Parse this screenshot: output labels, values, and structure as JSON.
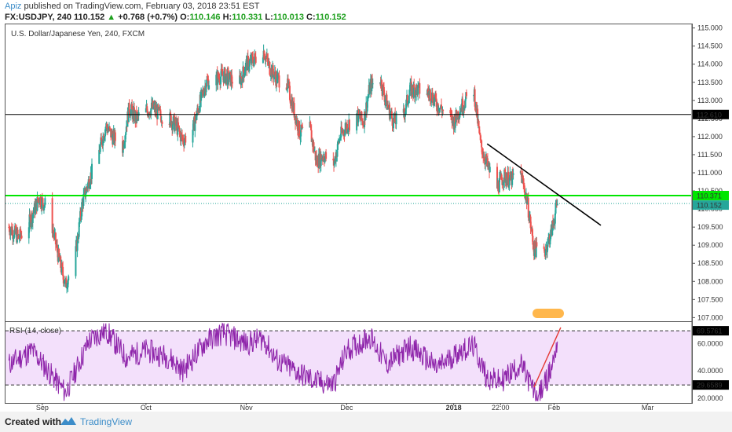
{
  "header": {
    "author": "Apiz",
    "published": "published on TradingView.com, February 03, 2018 23:51 EST",
    "symbol": "FX:USDJPY, 240",
    "last": "110.152",
    "change": "+0.768 (+0.7%)",
    "open_label": "O:",
    "open": "110.146",
    "high_label": "H:",
    "high": "110.331",
    "low_label": "L:",
    "low": "110.013",
    "close_label": "C:",
    "close": "110.152"
  },
  "footer": {
    "created": "Created with",
    "brand": "TradingView"
  },
  "colors": {
    "up": "#26a69a",
    "down": "#ef5350",
    "green_line": "#00e600",
    "rsi_line": "#8e24aa",
    "rsi_band": "#f3e0fb",
    "black_line": "#000000",
    "trend_red": "#e53935"
  },
  "chart_data": [
    {
      "type": "candlestick",
      "title": "U.S. Dollar/Japanese Yen, 240, FXCM",
      "ylim": [
        106.9,
        115.1
      ],
      "y_ticks": [
        "115.000",
        "114.500",
        "114.000",
        "113.500",
        "113.000",
        "112.500",
        "112.000",
        "111.500",
        "111.000",
        "110.500",
        "110.000",
        "109.500",
        "109.000",
        "108.500",
        "108.000",
        "107.500",
        "107.000"
      ],
      "x_ticks": [
        "Sep",
        "Oct",
        "Nov",
        "Dec",
        "2018",
        "22:00",
        "Feb",
        "Mar"
      ],
      "approx_path": [
        {
          "date": "Aug 22",
          "close": 109.5
        },
        {
          "date": "Aug 25",
          "close": 109.2
        },
        {
          "date": "Aug 28",
          "close": 109.6
        },
        {
          "date": "Aug 31",
          "close": 110.3
        },
        {
          "date": "Sep 2",
          "close": 110.1
        },
        {
          "date": "Sep 4",
          "close": 109.5
        },
        {
          "date": "Sep 6",
          "close": 108.6
        },
        {
          "date": "Sep 8",
          "close": 107.9
        },
        {
          "date": "Sep 11",
          "close": 108.8
        },
        {
          "date": "Sep 13",
          "close": 110.2
        },
        {
          "date": "Sep 15",
          "close": 110.8
        },
        {
          "date": "Sep 18",
          "close": 111.6
        },
        {
          "date": "Sep 20",
          "close": 112.3
        },
        {
          "date": "Sep 22",
          "close": 112.0
        },
        {
          "date": "Sep 25",
          "close": 111.7
        },
        {
          "date": "Sep 27",
          "close": 112.8
        },
        {
          "date": "Sep 29",
          "close": 112.5
        },
        {
          "date": "Oct 2",
          "close": 112.7
        },
        {
          "date": "Oct 4",
          "close": 112.8
        },
        {
          "date": "Oct 6",
          "close": 112.6
        },
        {
          "date": "Oct 9",
          "close": 112.5
        },
        {
          "date": "Oct 11",
          "close": 112.3
        },
        {
          "date": "Oct 13",
          "close": 111.9
        },
        {
          "date": "Oct 16",
          "close": 112.2
        },
        {
          "date": "Oct 18",
          "close": 112.9
        },
        {
          "date": "Oct 20",
          "close": 113.5
        },
        {
          "date": "Oct 23",
          "close": 113.6
        },
        {
          "date": "Oct 25",
          "close": 113.7
        },
        {
          "date": "Oct 27",
          "close": 113.6
        },
        {
          "date": "Oct 30",
          "close": 113.5
        },
        {
          "date": "Nov 1",
          "close": 114.0
        },
        {
          "date": "Nov 3",
          "close": 114.1
        },
        {
          "date": "Nov 6",
          "close": 114.4
        },
        {
          "date": "Nov 8",
          "close": 113.9
        },
        {
          "date": "Nov 10",
          "close": 113.6
        },
        {
          "date": "Nov 13",
          "close": 113.5
        },
        {
          "date": "Nov 15",
          "close": 112.8
        },
        {
          "date": "Nov 17",
          "close": 112.1
        },
        {
          "date": "Nov 20",
          "close": 112.2
        },
        {
          "date": "Nov 22",
          "close": 111.3
        },
        {
          "date": "Nov 24",
          "close": 111.5
        },
        {
          "date": "Nov 27",
          "close": 111.2
        },
        {
          "date": "Nov 29",
          "close": 112.0
        },
        {
          "date": "Dec 1",
          "close": 112.3
        },
        {
          "date": "Dec 4",
          "close": 112.6
        },
        {
          "date": "Dec 6",
          "close": 112.4
        },
        {
          "date": "Dec 8",
          "close": 113.4
        },
        {
          "date": "Dec 11",
          "close": 113.6
        },
        {
          "date": "Dec 13",
          "close": 112.9
        },
        {
          "date": "Dec 15",
          "close": 112.4
        },
        {
          "date": "Dec 18",
          "close": 112.6
        },
        {
          "date": "Dec 20",
          "close": 113.3
        },
        {
          "date": "Dec 22",
          "close": 113.3
        },
        {
          "date": "Dec 26",
          "close": 113.2
        },
        {
          "date": "Dec 28",
          "close": 112.9
        },
        {
          "date": "Jan 2",
          "close": 112.4
        },
        {
          "date": "Jan 4",
          "close": 112.8
        },
        {
          "date": "Jan 8",
          "close": 113.3
        },
        {
          "date": "Jan 10",
          "close": 111.8
        },
        {
          "date": "Jan 12",
          "close": 111.2
        },
        {
          "date": "Jan 15",
          "close": 110.6
        },
        {
          "date": "Jan 17",
          "close": 110.9
        },
        {
          "date": "Jan 19",
          "close": 110.8
        },
        {
          "date": "Jan 22",
          "close": 111.0
        },
        {
          "date": "Jan 24",
          "close": 110.2
        },
        {
          "date": "Jan 26",
          "close": 108.9
        },
        {
          "date": "Jan 29",
          "close": 108.8
        },
        {
          "date": "Jan 31",
          "close": 109.3
        },
        {
          "date": "Feb 2",
          "close": 110.152
        }
      ],
      "horizontal_lines": [
        {
          "price": 112.61,
          "label": "112.610",
          "color": "#000000"
        },
        {
          "price": 110.371,
          "label": "110.371",
          "color": "#00e600"
        }
      ],
      "last_price": {
        "price": 110.152,
        "label": "110.152"
      },
      "trendline": {
        "from": {
          "date": "Jan 12",
          "price": 111.8
        },
        "to": {
          "date": "Feb 15",
          "price": 109.55
        }
      }
    },
    {
      "type": "line",
      "title": "RSI (14, close)",
      "ylim": [
        17,
        76
      ],
      "y_ticks": [
        "60.0000",
        "40.0000",
        "20.0000"
      ],
      "levels": [
        {
          "value": 69.5761,
          "label": "69.5761"
        },
        {
          "value": 29.6589,
          "label": "29.6589"
        }
      ],
      "trendline": {
        "from": {
          "date": "Jan 26",
          "value": 28
        },
        "to": {
          "date": "Feb 3",
          "value": 72
        }
      },
      "approx_path": [
        {
          "date": "Aug 22",
          "value": 45
        },
        {
          "date": "Aug 29",
          "value": 55
        },
        {
          "date": "Sep 6",
          "value": 30
        },
        {
          "date": "Sep 8",
          "value": 24
        },
        {
          "date": "Sep 15",
          "value": 62
        },
        {
          "date": "Sep 20",
          "value": 70
        },
        {
          "date": "Sep 26",
          "value": 50
        },
        {
          "date": "Oct 2",
          "value": 55
        },
        {
          "date": "Oct 9",
          "value": 50
        },
        {
          "date": "Oct 13",
          "value": 40
        },
        {
          "date": "Oct 20",
          "value": 62
        },
        {
          "date": "Oct 25",
          "value": 68
        },
        {
          "date": "Nov 1",
          "value": 60
        },
        {
          "date": "Nov 6",
          "value": 64
        },
        {
          "date": "Nov 10",
          "value": 48
        },
        {
          "date": "Nov 17",
          "value": 38
        },
        {
          "date": "Nov 22",
          "value": 32
        },
        {
          "date": "Nov 27",
          "value": 30
        },
        {
          "date": "Dec 1",
          "value": 55
        },
        {
          "date": "Dec 8",
          "value": 65
        },
        {
          "date": "Dec 13",
          "value": 45
        },
        {
          "date": "Dec 20",
          "value": 58
        },
        {
          "date": "Dec 28",
          "value": 42
        },
        {
          "date": "Jan 4",
          "value": 55
        },
        {
          "date": "Jan 8",
          "value": 58
        },
        {
          "date": "Jan 12",
          "value": 35
        },
        {
          "date": "Jan 16",
          "value": 32
        },
        {
          "date": "Jan 22",
          "value": 45
        },
        {
          "date": "Jan 26",
          "value": 25
        },
        {
          "date": "Jan 27",
          "value": 19
        },
        {
          "date": "Jan 31",
          "value": 40
        },
        {
          "date": "Feb 2",
          "value": 62
        }
      ]
    }
  ]
}
